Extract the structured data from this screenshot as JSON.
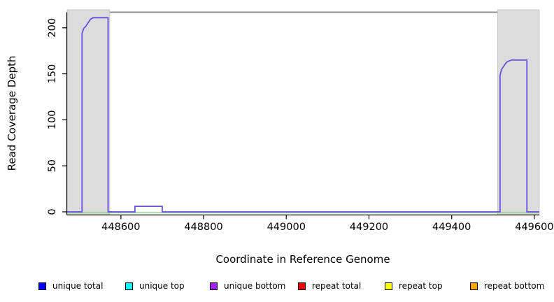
{
  "chart_data": {
    "type": "line",
    "subtype": "coverage-step-plot",
    "title": "",
    "xlabel": "Coordinate in Reference Genome",
    "ylabel": "Read Coverage Depth",
    "xlim": [
      448470,
      449612
    ],
    "ylim": [
      0,
      217
    ],
    "xticks": [
      448600,
      448800,
      449000,
      449200,
      449400,
      449600
    ],
    "yticks": [
      0,
      50,
      100,
      150,
      200
    ],
    "grid": false,
    "legend_position": "bottom",
    "top_border_color": "#8c8c8c",
    "axis_color": "#000000",
    "shaded_regions": [
      {
        "name": "left-repeat-masked-region",
        "x_start": 448470,
        "x_end": 448573,
        "fill": "#dcdcdc",
        "border": "#bdbdbd"
      },
      {
        "name": "right-repeat-masked-region",
        "x_start": 449511,
        "x_end": 449612,
        "fill": "#dcdcdc",
        "border": "#bdbdbd"
      }
    ],
    "series": [
      {
        "name": "zero-depth-baseline",
        "color": "#7fd87f",
        "points": [
          [
            448470,
            0
          ],
          [
            449612,
            0
          ]
        ]
      },
      {
        "name": "read-coverage-depth",
        "color": "#6a4fe0",
        "points": [
          [
            448470,
            0
          ],
          [
            448506,
            0
          ],
          [
            448506,
            194
          ],
          [
            448509,
            198
          ],
          [
            448511,
            200
          ],
          [
            448514,
            201
          ],
          [
            448517,
            203
          ],
          [
            448520,
            205
          ],
          [
            448523,
            207
          ],
          [
            448526,
            209
          ],
          [
            448529,
            210
          ],
          [
            448533,
            211
          ],
          [
            448569,
            211
          ],
          [
            448569,
            0
          ],
          [
            448634,
            0
          ],
          [
            448634,
            6
          ],
          [
            448700,
            6
          ],
          [
            448700,
            0
          ],
          [
            449517,
            0
          ],
          [
            449517,
            148
          ],
          [
            449519,
            152
          ],
          [
            449521,
            155
          ],
          [
            449524,
            157
          ],
          [
            449527,
            159
          ],
          [
            449530,
            161
          ],
          [
            449534,
            163
          ],
          [
            449539,
            164
          ],
          [
            449545,
            165
          ],
          [
            449582,
            165
          ],
          [
            449582,
            0
          ],
          [
            449612,
            0
          ]
        ]
      }
    ]
  },
  "legend": {
    "items": [
      {
        "label": "unique total",
        "color": "#0000ff"
      },
      {
        "label": "unique top",
        "color": "#00ffff"
      },
      {
        "label": "unique bottom",
        "color": "#a020f0"
      },
      {
        "label": "repeat total",
        "color": "#ee0000"
      },
      {
        "label": "repeat top",
        "color": "#ffff00"
      },
      {
        "label": "repeat bottom",
        "color": "#ffa500"
      }
    ]
  }
}
